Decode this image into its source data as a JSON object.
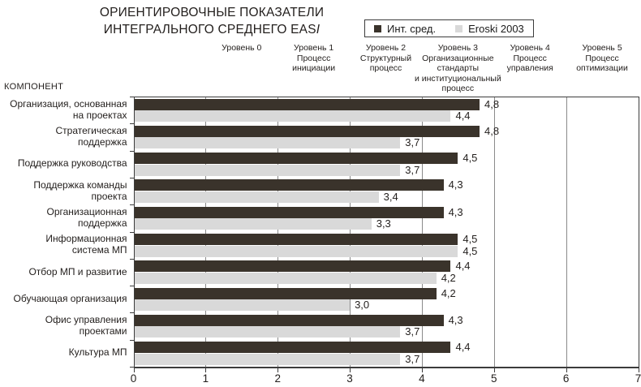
{
  "title": {
    "line1": "ОРИЕНТИРОВОЧНЫЕ ПОКАЗАТЕЛИ",
    "line2_main": "ИНТЕГРАЛЬНОГО СРЕДНЕГО EAS",
    "line2_italic": "I"
  },
  "legend": {
    "series1": "Инт. сред.",
    "series2": "Eroski 2003"
  },
  "component_label": "КОМПОНЕНТ",
  "level_headers": [
    "Уровень 0",
    "Уровень 1\nПроцесс\nинициации",
    "Уровень 2\nСтруктурный\nпроцесс",
    "Уровень 3\nОрганизационные\nстандарты\nи институциональный\nпроцесс",
    "Уровень 4\nПроцесс\nуправления",
    "Уровень 5\nПроцесс\nоптимизации"
  ],
  "colors": {
    "bar_dark": "#3a332b",
    "bar_light": "#d9d9d9",
    "gridline": "#8a8a8a",
    "axis": "#3c3c3c",
    "text": "#221e1c"
  },
  "chart_data": {
    "type": "bar",
    "orientation": "horizontal",
    "title": "ОРИЕНТИРОВОЧНЫЕ ПОКАЗАТЕЛИ ИНТЕГРАЛЬНОГО СРЕДНЕГО EASI",
    "categories_axis_label": "КОМПОНЕНТ",
    "categories": [
      "Организация, основанная на проектах",
      "Стратегическая поддержка",
      "Поддержка руководства",
      "Поддержка команды проекта",
      "Организационная поддержка",
      "Информационная система МП",
      "Отбор МП и развитие",
      "Обучающая организация",
      "Офис управления проектами",
      "Культура МП"
    ],
    "series": [
      {
        "name": "Инт. сред.",
        "color": "#3a332b",
        "values": [
          4.8,
          4.8,
          4.5,
          4.3,
          4.3,
          4.5,
          4.4,
          4.2,
          4.3,
          4.4
        ]
      },
      {
        "name": "Eroski 2003",
        "color": "#d9d9d9",
        "values": [
          4.4,
          3.7,
          3.7,
          3.4,
          3.3,
          4.5,
          4.2,
          3.0,
          3.7,
          3.7
        ]
      }
    ],
    "xlim": [
      0,
      7
    ],
    "x_ticks": [
      0,
      1,
      2,
      3,
      4,
      5,
      6,
      7
    ],
    "grid": "vertical gridlines at 1-6 behind bars",
    "legend_position": "top-right",
    "value_label_format": "decimal comma, one fraction digit"
  }
}
